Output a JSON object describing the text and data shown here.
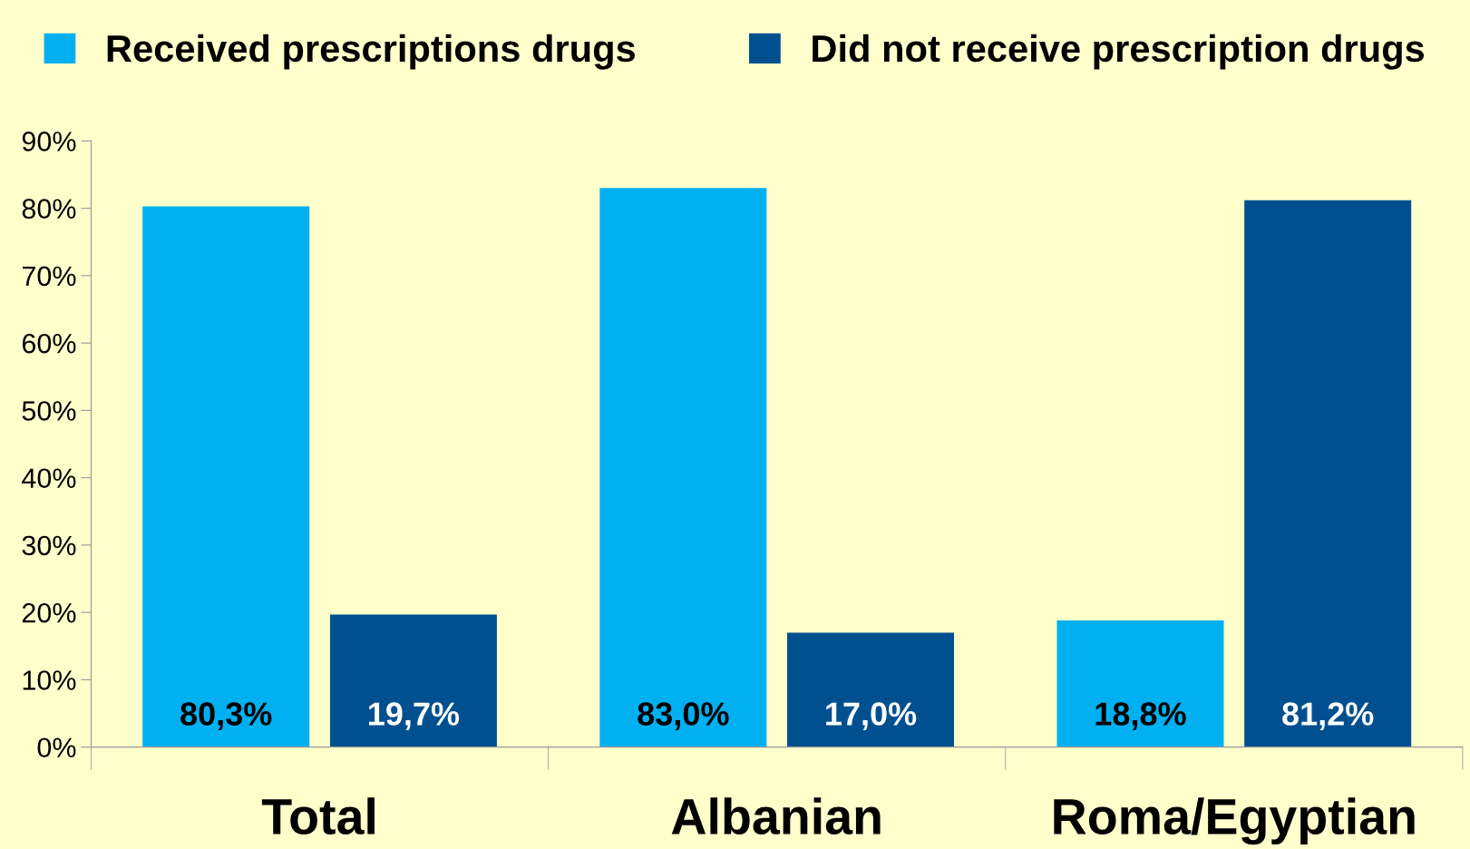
{
  "chart_data": {
    "type": "bar",
    "categories": [
      "Total",
      "Albanian",
      "Roma/Egyptian"
    ],
    "series": [
      {
        "name": "Received prescriptions drugs",
        "color": "#00b0f0",
        "values": [
          80.3,
          83.0,
          18.8
        ],
        "value_labels": [
          "80,3%",
          "83,0%",
          "18,8%"
        ]
      },
      {
        "name": "Did not receive prescription drugs",
        "color": "#00508f",
        "values": [
          19.7,
          17.0,
          81.2
        ],
        "value_labels": [
          "19,7%",
          "17,0%",
          "81,2%"
        ]
      }
    ],
    "ylim": [
      0,
      90
    ],
    "yticks": [
      {
        "value": 0,
        "label": "0%"
      },
      {
        "value": 10,
        "label": "10%"
      },
      {
        "value": 20,
        "label": "20%"
      },
      {
        "value": 30,
        "label": "30%"
      },
      {
        "value": 40,
        "label": "40%"
      },
      {
        "value": 50,
        "label": "50%"
      },
      {
        "value": 60,
        "label": "60%"
      },
      {
        "value": 70,
        "label": "70%"
      },
      {
        "value": 80,
        "label": "80%"
      },
      {
        "value": 90,
        "label": "90%"
      }
    ],
    "grid": false,
    "legend": "top"
  }
}
